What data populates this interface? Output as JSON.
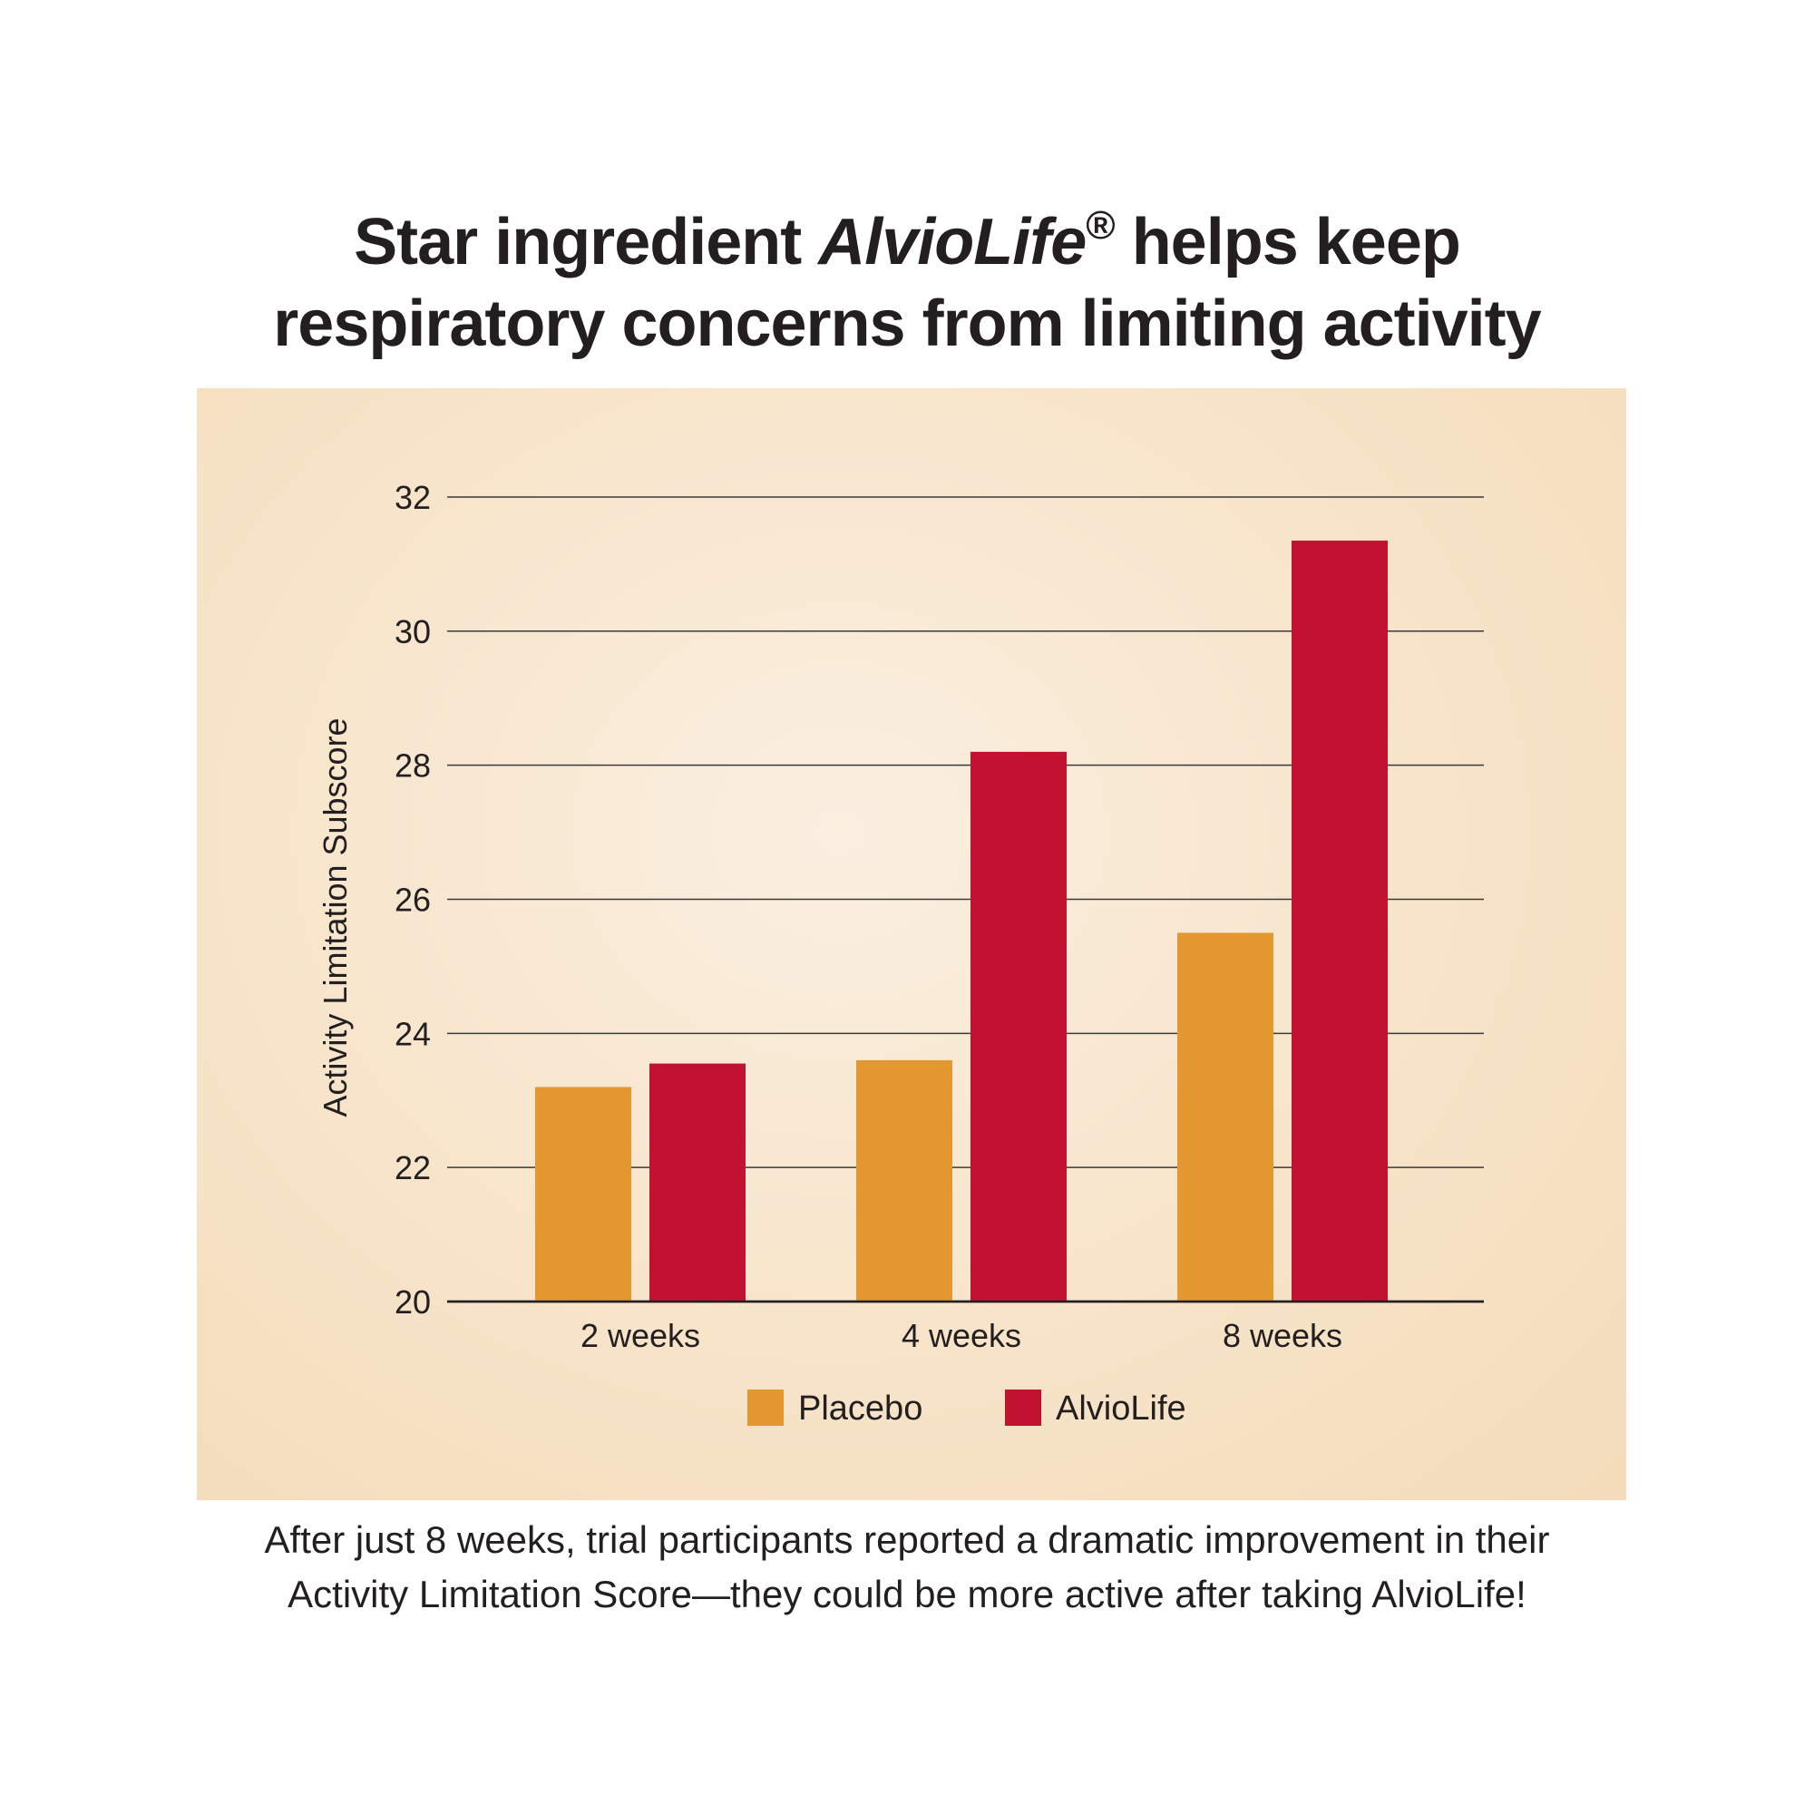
{
  "title": {
    "line1_before": "Star ingredient ",
    "line1_brand": "AlvioLife",
    "line1_reg": "®",
    "line1_after": " helps keep",
    "line2": "respiratory concerns from limiting activity"
  },
  "caption": {
    "line1": "After just 8 weeks, trial participants reported a dramatic improvement in their",
    "line2": "Activity Limitation Score—they could be more active after taking AlvioLife!"
  },
  "colors": {
    "placebo": "#e39830",
    "alviolife": "#c11331",
    "grid": "#3a3a3a"
  },
  "chart_data": {
    "type": "bar",
    "title": "",
    "xlabel": "",
    "ylabel": "Activity Limitation Subscore",
    "categories": [
      "2 weeks",
      "4 weeks",
      "8 weeks"
    ],
    "series": [
      {
        "name": "Placebo",
        "values": [
          23.2,
          23.6,
          25.5
        ]
      },
      {
        "name": "AlvioLife",
        "values": [
          23.55,
          28.2,
          31.35
        ]
      }
    ],
    "ylim": [
      20,
      32
    ],
    "yticks": [
      20,
      22,
      24,
      26,
      28,
      30,
      32
    ],
    "grid": true,
    "legend_position": "bottom-center"
  }
}
